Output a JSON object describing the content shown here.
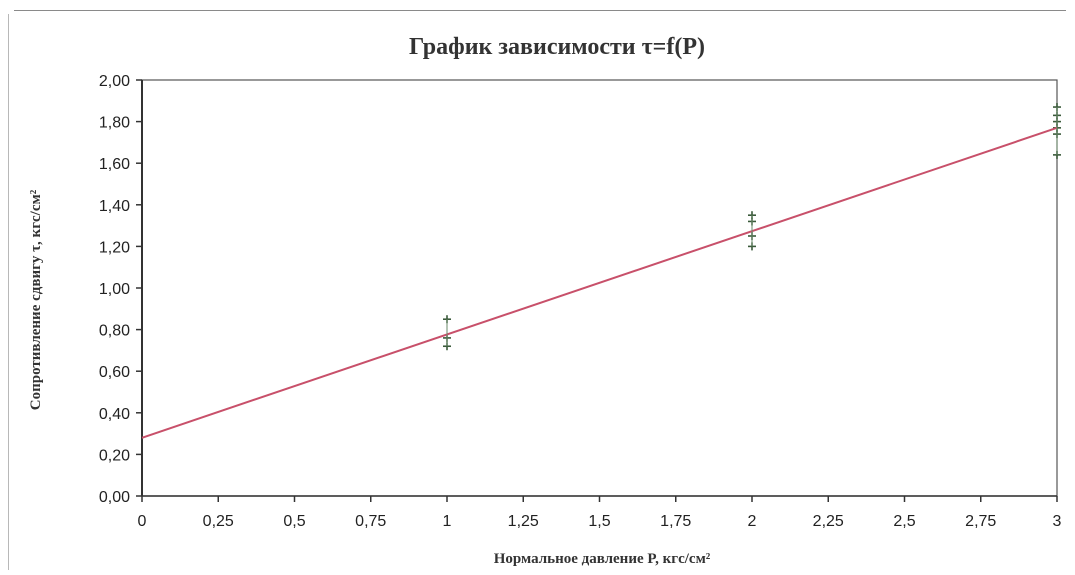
{
  "chart_data": {
    "type": "scatter",
    "title": "График зависимости τ=f(P)",
    "xlabel": "Нормальное давление P, кгс/см²",
    "ylabel": "Сопротивление сдвигу τ, кгс/см²",
    "xlim": [
      0,
      3
    ],
    "ylim": [
      0,
      2
    ],
    "x_ticks": [
      "0",
      "0,25",
      "0,5",
      "0,75",
      "1",
      "1,25",
      "1,5",
      "1,75",
      "2",
      "2,25",
      "2,5",
      "2,75",
      "3"
    ],
    "y_ticks": [
      "0,00",
      "0,20",
      "0,40",
      "0,60",
      "0,80",
      "1,00",
      "1,20",
      "1,40",
      "1,60",
      "1,80",
      "2,00"
    ],
    "grid": false,
    "legend": "none",
    "series": [
      {
        "marker": "plus",
        "color": "#3a5a3a",
        "points": [
          [
            1,
            0.85
          ],
          [
            1,
            0.76
          ],
          [
            1,
            0.72
          ],
          [
            2,
            1.35
          ],
          [
            2,
            1.32
          ],
          [
            2,
            1.25
          ],
          [
            2,
            1.2
          ],
          [
            3,
            1.87
          ],
          [
            3,
            1.83
          ],
          [
            3,
            1.8
          ],
          [
            3,
            1.77
          ],
          [
            3,
            1.74
          ],
          [
            3,
            1.64
          ]
        ]
      },
      {
        "type": "line",
        "color": "#c8506a",
        "points": [
          [
            0,
            0.28
          ],
          [
            3,
            1.77
          ]
        ]
      }
    ]
  }
}
